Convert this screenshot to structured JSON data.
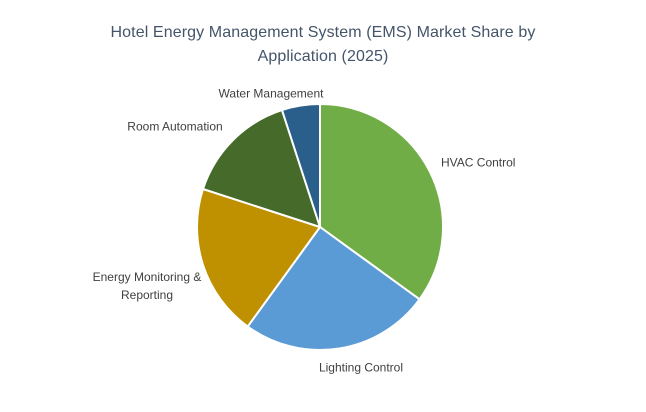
{
  "chart_data": {
    "type": "pie",
    "title": "Hotel Energy Management System (EMS) Market Share by Application (2025)",
    "title_lines": [
      "Hotel Energy Management System (EMS) Market Share by",
      "Application (2025)"
    ],
    "values_unit": "percent_estimated_from_arc_angles",
    "start_angle_deg": 0,
    "direction": "clockwise",
    "legend": "none",
    "label_style": "outside",
    "slices": [
      {
        "label": "HVAC Control",
        "value": 35,
        "color": "#70AD47"
      },
      {
        "label": "Lighting Control",
        "value": 25,
        "color": "#5B9BD5"
      },
      {
        "label": "Energy Monitoring & Reporting",
        "value": 20,
        "color": "#BF9000"
      },
      {
        "label": "Room Automation",
        "value": 15,
        "color": "#456A29"
      },
      {
        "label": "Water Management",
        "value": 5,
        "color": "#2A5F8C"
      }
    ]
  },
  "colors": {
    "background": "#FFFFFF",
    "title_text": "#44546A",
    "label_text": "#404040",
    "slice_border": "#FFFFFF"
  }
}
